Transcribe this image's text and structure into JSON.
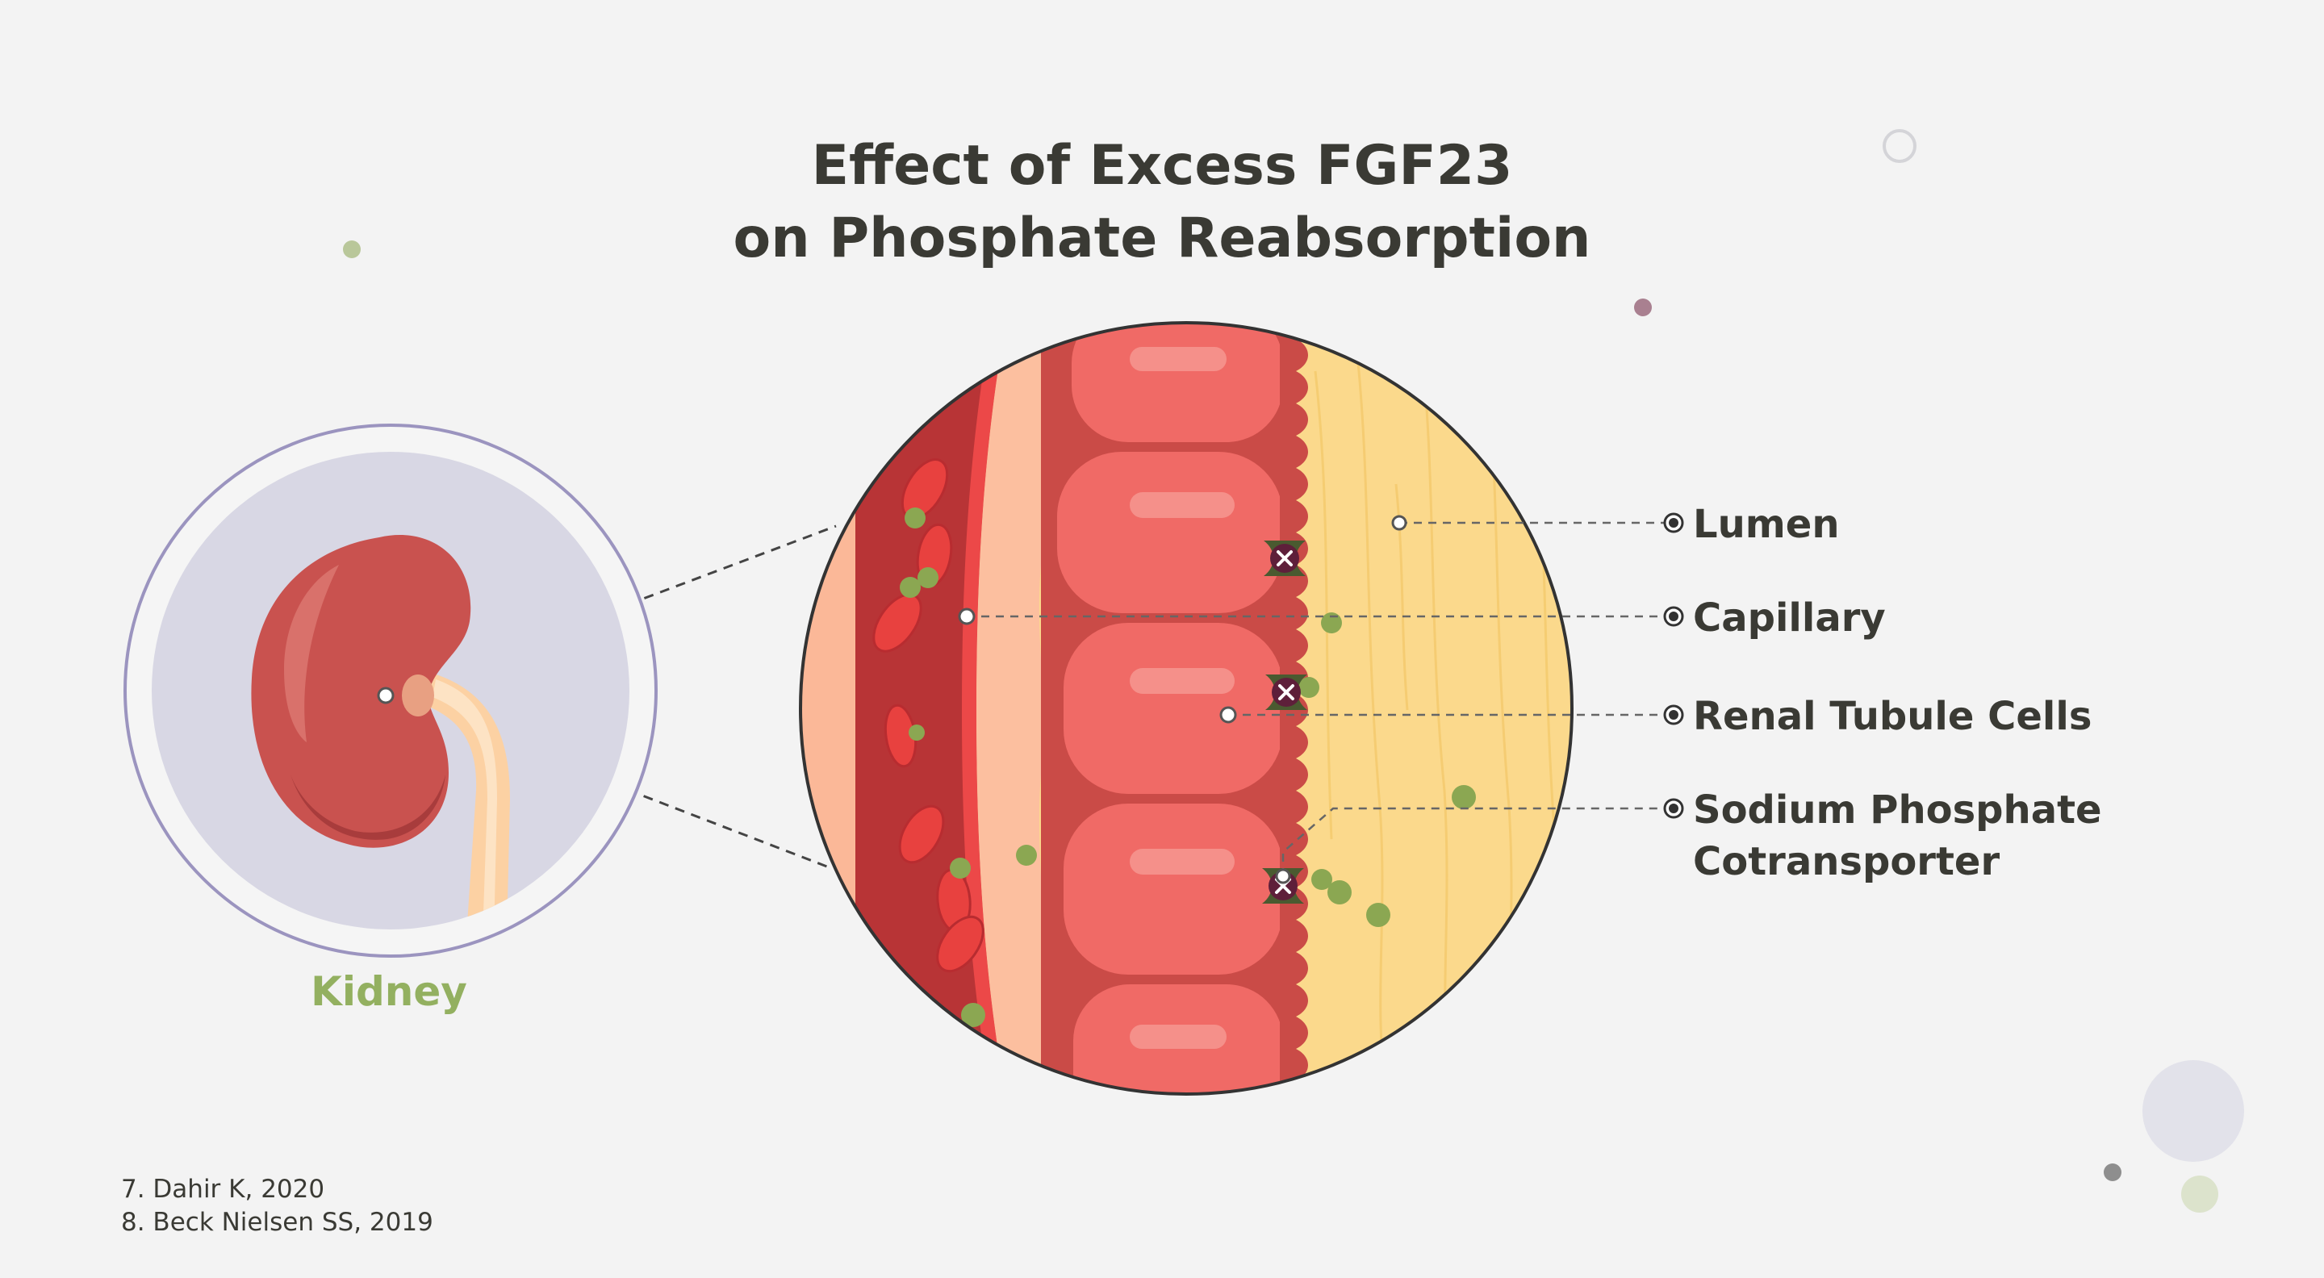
{
  "title": {
    "line1": "Effect of Excess FGF23",
    "line2": "on Phosphate Reabsorption"
  },
  "kidney_label": "Kidney",
  "labels": {
    "lumen": "Lumen",
    "capillary": "Capillary",
    "renal_tubule_cells": "Renal Tubule Cells",
    "cotransporter_line1": "Sodium Phosphate",
    "cotransporter_line2": "Cotransporter"
  },
  "references": [
    "7. Dahir K, 2020",
    "8. Beck Nielsen SS, 2019"
  ],
  "colors": {
    "background": "#f3f3f3",
    "title": "#3a3a34",
    "kidney_label": "#93b060",
    "kidney": "#c9524f",
    "capillary": "#b83436",
    "tubule_cell": "#f06a66",
    "lumen": "#fbd98c",
    "phosphate": "#8ba752",
    "transporter": "#5e1f3a"
  },
  "icons": {
    "transporter_blocked": "x-icon",
    "callout_marker": "dot-icon"
  }
}
